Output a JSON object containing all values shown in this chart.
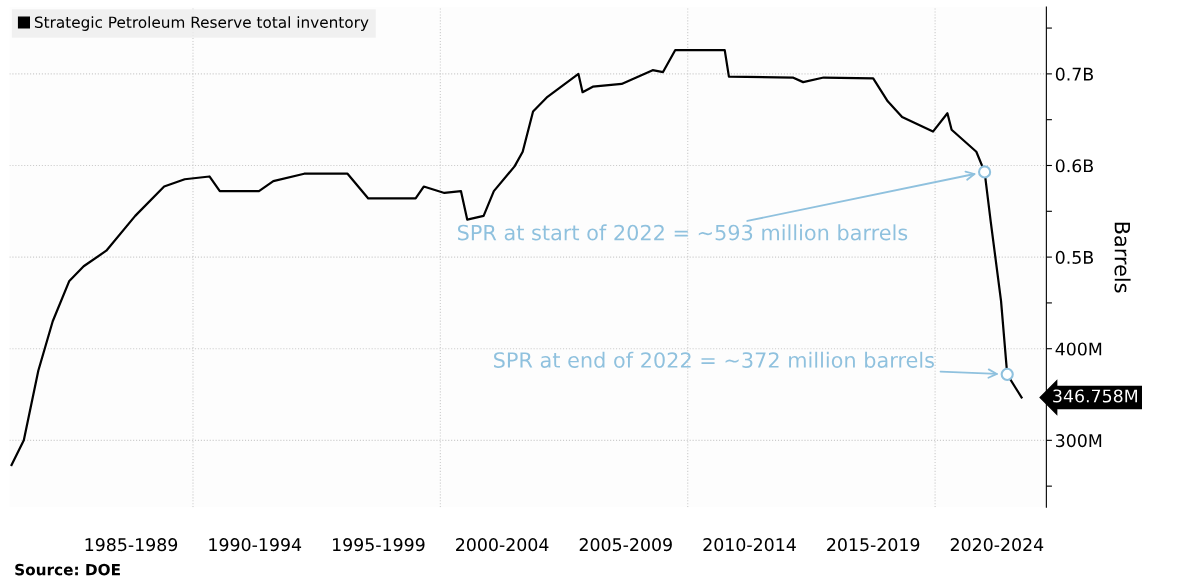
{
  "chart_data": {
    "type": "line",
    "ylabel": "Barrels",
    "legend": "top left",
    "grid": true,
    "marker": "none",
    "line_style": "solid",
    "xlim": [
      "1982-08",
      "2024-07"
    ],
    "xticks": [
      {
        "value": "1987-07",
        "label": "1985-1989"
      },
      {
        "value": "1990-01",
        "label": null
      },
      {
        "value": "1992-07",
        "label": "1990-1994"
      },
      {
        "value": "1997-07",
        "label": "1995-1999"
      },
      {
        "value": "2000-01",
        "label": null
      },
      {
        "value": "2002-07",
        "label": "2000-2004"
      },
      {
        "value": "2007-07",
        "label": "2005-2009"
      },
      {
        "value": "2010-01",
        "label": null
      },
      {
        "value": "2012-07",
        "label": "2010-2014"
      },
      {
        "value": "2017-07",
        "label": "2015-2019"
      },
      {
        "value": "2020-01",
        "label": null
      },
      {
        "value": "2022-07",
        "label": "2020-2024"
      }
    ],
    "ylim": [
      227000000,
      773000000
    ],
    "yticks": [
      {
        "value": 250000000,
        "label": null
      },
      {
        "value": 300000000,
        "label": "300M"
      },
      {
        "value": 350000000,
        "label": null
      },
      {
        "value": 400000000,
        "label": "400M"
      },
      {
        "value": 450000000,
        "label": null
      },
      {
        "value": 500000000,
        "label": "0.5B"
      },
      {
        "value": 550000000,
        "label": null
      },
      {
        "value": 600000000,
        "label": "0.6B"
      },
      {
        "value": 650000000,
        "label": null
      },
      {
        "value": 700000000,
        "label": "0.7B"
      },
      {
        "value": 750000000,
        "label": null
      }
    ],
    "series": [
      {
        "name": "Strategic Petroleum Reserve total inventory",
        "color": "#000000",
        "x": [
          "1982-09",
          "1983-03",
          "1983-10",
          "1984-05",
          "1985-01",
          "1985-08",
          "1986-07",
          "1987-09",
          "1988-11",
          "1989-09",
          "1990-09",
          "1991-02",
          "1992-09",
          "1993-04",
          "1994-07",
          "1996-04",
          "1997-02",
          "1999-01",
          "1999-05",
          "2000-03",
          "2000-11",
          "2001-02",
          "2001-10",
          "2002-03",
          "2003-01",
          "2003-05",
          "2003-10",
          "2004-05",
          "2005-08",
          "2005-10",
          "2006-03",
          "2007-05",
          "2008-08",
          "2009-01",
          "2009-07",
          "2011-07",
          "2011-09",
          "2014-04",
          "2014-09",
          "2015-07",
          "2017-07",
          "2018-02",
          "2018-09",
          "2019-12",
          "2020-07",
          "2020-09",
          "2021-09",
          "2022-01",
          "2022-04",
          "2022-09",
          "2022-12",
          "2023-07"
        ],
        "values": [
          273000000,
          300000000,
          376000000,
          430000000,
          474000000,
          490000000,
          507000000,
          545000000,
          577000000,
          585000000,
          588000000,
          572000000,
          572000000,
          583000000,
          591000000,
          591000000,
          564000000,
          564000000,
          577000000,
          570000000,
          572000000,
          541000000,
          545000000,
          572000000,
          599000000,
          615000000,
          659000000,
          675000000,
          700000000,
          680000000,
          686000000,
          689000000,
          704000000,
          702000000,
          726000000,
          726000000,
          697000000,
          696000000,
          691000000,
          696000000,
          695000000,
          670000000,
          653000000,
          637000000,
          657000000,
          639000000,
          615000000,
          593000000,
          539000000,
          452000000,
          372000000,
          346758000
        ]
      },
      {
        "type": "scatter",
        "marker": "circle",
        "color": "#8fc1de",
        "x": [
          "2022-01",
          "2022-12"
        ],
        "values": [
          593000000,
          372000000
        ]
      }
    ],
    "annotations": [
      "SPR at start of 2022 = ~593 million barrels",
      "SPR at end of 2022 = ~372 million barrels",
      "346.758M",
      "Source: DOE"
    ]
  }
}
